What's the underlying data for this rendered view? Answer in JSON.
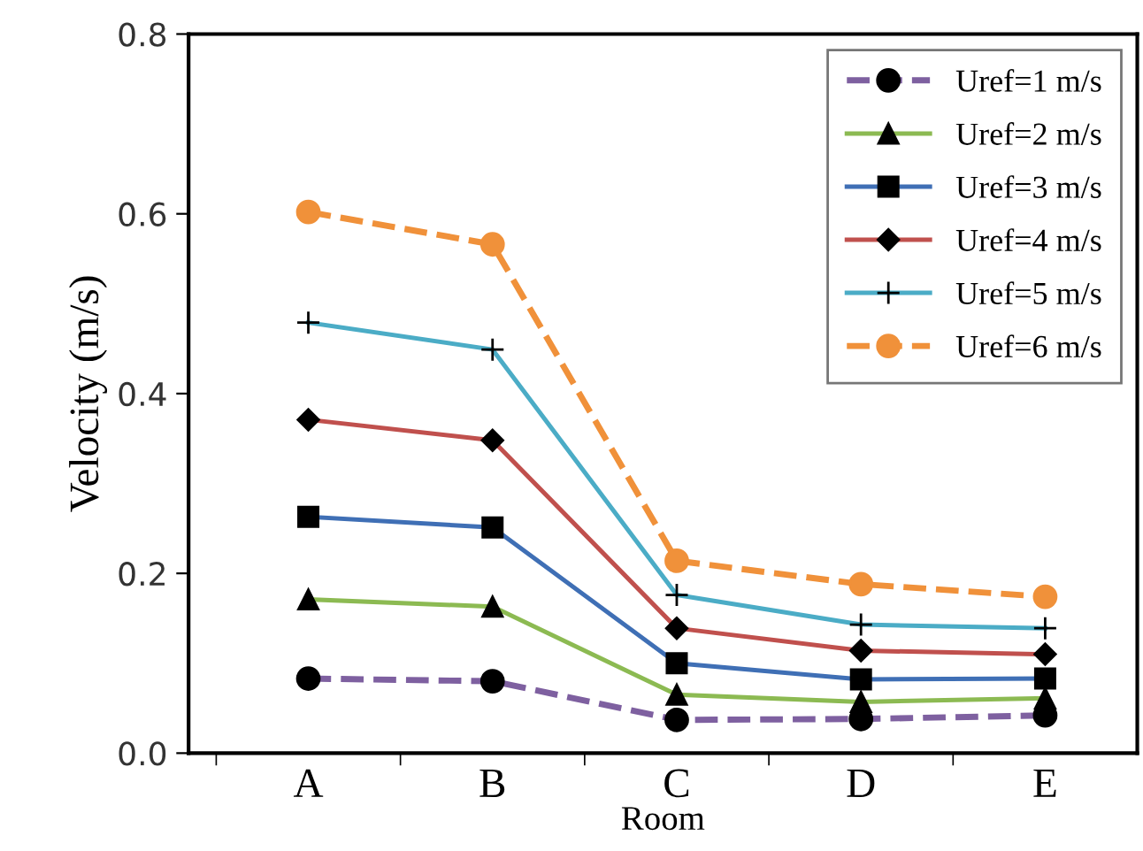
{
  "chart_data": {
    "type": "line",
    "xlabel": "Room",
    "ylabel": "Velocity (m/s)",
    "categories": [
      "A",
      "B",
      "C",
      "D",
      "E"
    ],
    "series": [
      {
        "name": "Uref=1 m/s",
        "color": "#7e60a0",
        "marker": "circle",
        "line_style": "dashed",
        "values": [
          0.083,
          0.08,
          0.037,
          0.038,
          0.042
        ]
      },
      {
        "name": "Uref=2 m/s",
        "color": "#8cba52",
        "marker": "triangle",
        "line_style": "solid",
        "values": [
          0.171,
          0.163,
          0.065,
          0.057,
          0.061
        ]
      },
      {
        "name": "Uref=3 m/s",
        "color": "#3f6fb5",
        "marker": "square",
        "line_style": "solid",
        "values": [
          0.263,
          0.251,
          0.1,
          0.082,
          0.083
        ]
      },
      {
        "name": "Uref=4 m/s",
        "color": "#c0504d",
        "marker": "diamond",
        "line_style": "solid",
        "values": [
          0.371,
          0.348,
          0.139,
          0.114,
          0.11
        ]
      },
      {
        "name": "Uref=5 m/s",
        "color": "#4bacc6",
        "marker": "cross",
        "line_style": "solid",
        "values": [
          0.479,
          0.449,
          0.176,
          0.143,
          0.139
        ]
      },
      {
        "name": "Uref=6 m/s",
        "color": "#f0913a",
        "marker": "circle",
        "line_style": "dashed",
        "values": [
          0.602,
          0.566,
          0.214,
          0.188,
          0.174
        ]
      }
    ],
    "ylim": [
      0,
      0.8
    ],
    "yticks": [
      {
        "value": 0,
        "label": "0.0"
      },
      0.2,
      0.4,
      0.6,
      0.8
    ],
    "grid": false,
    "legend": "top right"
  }
}
